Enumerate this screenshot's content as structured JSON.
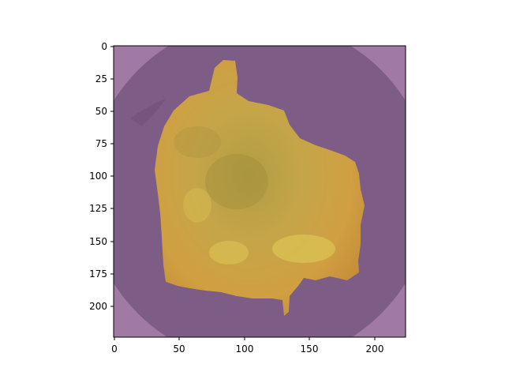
{
  "image": {
    "description_visible": "segmentation overlay on circular specimen",
    "colors": {
      "background_outside_circle": "#a07aa5",
      "circle_fill": "#7d5c86",
      "mask_fill": "#c89a3a",
      "mask_highlight": "#d8be52",
      "mask_shadow": "#9c8a38",
      "axes_frame": "#000000"
    }
  },
  "axes": {
    "x_ticks": [
      "0",
      "50",
      "100",
      "150",
      "200"
    ],
    "y_ticks": [
      "0",
      "25",
      "50",
      "75",
      "100",
      "125",
      "150",
      "175",
      "200"
    ],
    "x_range": [
      0,
      224
    ],
    "y_range": [
      0,
      224
    ]
  }
}
